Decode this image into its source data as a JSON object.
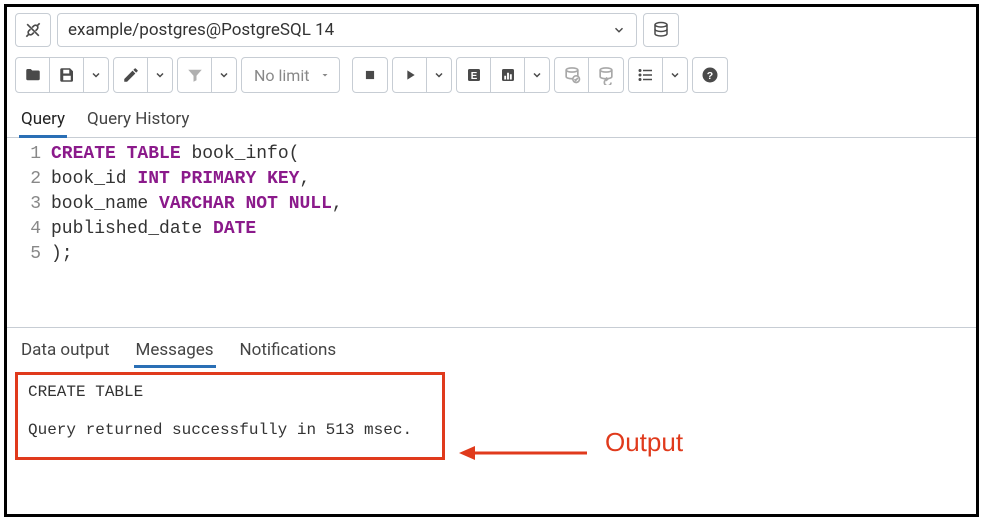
{
  "connection": {
    "label": "example/postgres@PostgreSQL 14"
  },
  "toolbar": {
    "limit_label": "No limit"
  },
  "editor_tabs": {
    "query": "Query",
    "history": "Query History"
  },
  "code": {
    "lines": [
      {
        "n": "1",
        "tokens": [
          {
            "t": "CREATE",
            "c": "kw-create"
          },
          {
            "t": " ",
            "c": ""
          },
          {
            "t": "TABLE",
            "c": "kw-create"
          },
          {
            "t": " book_info(",
            "c": "ident"
          }
        ]
      },
      {
        "n": "2",
        "tokens": [
          {
            "t": "book_id ",
            "c": "ident"
          },
          {
            "t": "INT",
            "c": "kw-type"
          },
          {
            "t": " ",
            "c": ""
          },
          {
            "t": "PRIMARY",
            "c": "kw-constraint"
          },
          {
            "t": " ",
            "c": ""
          },
          {
            "t": "KEY",
            "c": "kw-constraint"
          },
          {
            "t": ",",
            "c": "ident"
          }
        ]
      },
      {
        "n": "3",
        "tokens": [
          {
            "t": "book_name ",
            "c": "ident"
          },
          {
            "t": "VARCHAR",
            "c": "kw-type"
          },
          {
            "t": " ",
            "c": ""
          },
          {
            "t": "NOT",
            "c": "kw-constraint"
          },
          {
            "t": " ",
            "c": ""
          },
          {
            "t": "NULL",
            "c": "kw-constraint"
          },
          {
            "t": ",",
            "c": "ident"
          }
        ]
      },
      {
        "n": "4",
        "tokens": [
          {
            "t": "published_date ",
            "c": "ident"
          },
          {
            "t": "DATE",
            "c": "kw-type"
          }
        ]
      },
      {
        "n": "5",
        "tokens": [
          {
            "t": ");",
            "c": "ident"
          }
        ]
      }
    ]
  },
  "output_tabs": {
    "data": "Data output",
    "messages": "Messages",
    "notifications": "Notifications"
  },
  "messages": {
    "line1": "CREATE TABLE",
    "line2": "Query returned successfully in 513 msec."
  },
  "annotation": {
    "label": "Output",
    "color": "#e03a1c"
  },
  "colors": {
    "border": "#c7cdd4",
    "tab_active": "#2a6fb5",
    "keyword": "#8b1a8b",
    "text": "#333333",
    "muted": "#888888",
    "annotation": "#e03a1c",
    "icon": "#4a4a4a"
  }
}
